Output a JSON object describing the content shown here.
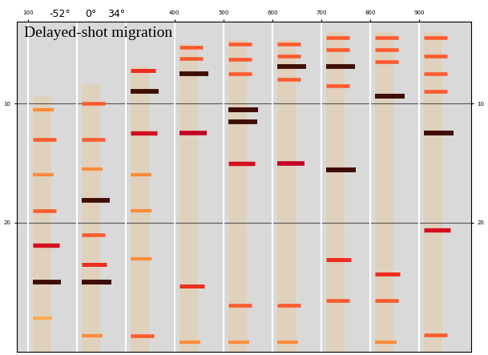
{
  "chart_data": {
    "type": "seismic_gathers",
    "title": "Delayed-shot migration",
    "annotations": [
      {
        "text": "-52°",
        "x": 165
      },
      {
        "text": "0°",
        "x": 229
      },
      {
        "text": "34°",
        "x": 281
      }
    ],
    "xlim": [
      78,
      1006
    ],
    "xticks": [
      100,
      400,
      500,
      600,
      700,
      800,
      900
    ],
    "ylim": [
      30.8,
      3.1
    ],
    "yticks": [
      10,
      20
    ],
    "grid": true,
    "gathers": [
      {
        "cdp": 100,
        "top": 9.4,
        "events": [
          {
            "depth": 10.5,
            "amp": 0.5
          },
          {
            "depth": 13,
            "amp": 0.6
          },
          {
            "depth": 16,
            "amp": 0.5
          },
          {
            "depth": 19,
            "amp": 0.6
          },
          {
            "depth": 21.9,
            "amp": 0.8
          },
          {
            "depth": 25,
            "amp": 0.9
          },
          {
            "depth": 28,
            "amp": 0.4
          }
        ]
      },
      {
        "cdp": 200,
        "top": 8.4,
        "events": [
          {
            "depth": 10,
            "amp": 0.6
          },
          {
            "depth": 13,
            "amp": 0.6
          },
          {
            "depth": 15.5,
            "amp": 0.5
          },
          {
            "depth": 18.1,
            "amp": 0.9
          },
          {
            "depth": 21,
            "amp": 0.6
          },
          {
            "depth": 23.5,
            "amp": 0.7
          },
          {
            "depth": 25,
            "amp": 0.95
          },
          {
            "depth": 29.5,
            "amp": 0.5
          }
        ]
      },
      {
        "cdp": 300,
        "top": 6.9,
        "events": [
          {
            "depth": 7.2,
            "amp": 0.7
          },
          {
            "depth": 9,
            "amp": 0.9
          },
          {
            "depth": 12.5,
            "amp": 0.8
          },
          {
            "depth": 16,
            "amp": 0.5
          },
          {
            "depth": 19,
            "amp": 0.5
          },
          {
            "depth": 23,
            "amp": 0.5
          },
          {
            "depth": 29.5,
            "amp": 0.6
          }
        ]
      },
      {
        "cdp": 400,
        "top": 5.0,
        "events": [
          {
            "depth": 5.3,
            "amp": 0.6
          },
          {
            "depth": 6.2,
            "amp": 0.6
          },
          {
            "depth": 7.5,
            "amp": 0.9
          },
          {
            "depth": 12.5,
            "amp": 0.85
          },
          {
            "depth": 25.3,
            "amp": 0.7
          },
          {
            "depth": 30,
            "amp": 0.5
          }
        ]
      },
      {
        "cdp": 500,
        "top": 4.7,
        "events": [
          {
            "depth": 5,
            "amp": 0.6
          },
          {
            "depth": 6.3,
            "amp": 0.6
          },
          {
            "depth": 7.5,
            "amp": 0.6
          },
          {
            "depth": 10.5,
            "amp": 0.95
          },
          {
            "depth": 11.5,
            "amp": 0.9
          },
          {
            "depth": 15,
            "amp": 0.8
          },
          {
            "depth": 26.9,
            "amp": 0.6
          },
          {
            "depth": 30,
            "amp": 0.5
          }
        ]
      },
      {
        "cdp": 600,
        "top": 4.7,
        "events": [
          {
            "depth": 5,
            "amp": 0.6
          },
          {
            "depth": 6,
            "amp": 0.6
          },
          {
            "depth": 6.9,
            "amp": 0.9
          },
          {
            "depth": 8,
            "amp": 0.6
          },
          {
            "depth": 15,
            "amp": 0.85
          },
          {
            "depth": 26.9,
            "amp": 0.6
          },
          {
            "depth": 30,
            "amp": 0.5
          }
        ]
      },
      {
        "cdp": 700,
        "top": 4.0,
        "events": [
          {
            "depth": 4.5,
            "amp": 0.6
          },
          {
            "depth": 5.5,
            "amp": 0.6
          },
          {
            "depth": 6.9,
            "amp": 0.9
          },
          {
            "depth": 8.5,
            "amp": 0.6
          },
          {
            "depth": 15.6,
            "amp": 0.95
          },
          {
            "depth": 23.1,
            "amp": 0.7
          },
          {
            "depth": 26.5,
            "amp": 0.6
          }
        ]
      },
      {
        "cdp": 800,
        "top": 4.0,
        "events": [
          {
            "depth": 4.5,
            "amp": 0.6
          },
          {
            "depth": 5.5,
            "amp": 0.6
          },
          {
            "depth": 6.5,
            "amp": 0.6
          },
          {
            "depth": 9.4,
            "amp": 0.95
          },
          {
            "depth": 24.3,
            "amp": 0.7
          },
          {
            "depth": 26.5,
            "amp": 0.6
          },
          {
            "depth": 30,
            "amp": 0.5
          }
        ]
      },
      {
        "cdp": 900,
        "top": 4.0,
        "events": [
          {
            "depth": 4.5,
            "amp": 0.6
          },
          {
            "depth": 6,
            "amp": 0.6
          },
          {
            "depth": 7.5,
            "amp": 0.6
          },
          {
            "depth": 9,
            "amp": 0.6
          },
          {
            "depth": 12.5,
            "amp": 0.95
          },
          {
            "depth": 20.6,
            "amp": 0.8
          },
          {
            "depth": 29.4,
            "amp": 0.6
          }
        ]
      }
    ]
  }
}
